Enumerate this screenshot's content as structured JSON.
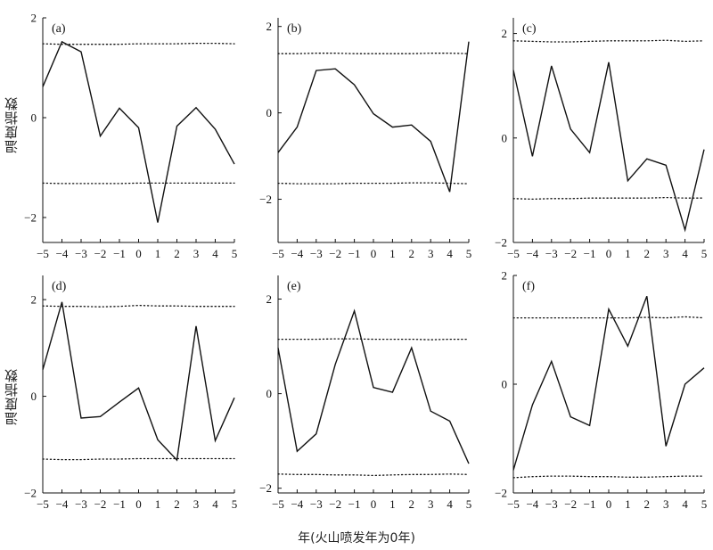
{
  "figure": {
    "ylabel": "温度指数",
    "xlabel": "年(火山喷发年为0年)"
  },
  "chart_data": [
    {
      "type": "line",
      "panel": "(a)",
      "x": [
        -5,
        -4,
        -3,
        -2,
        -1,
        0,
        1,
        2,
        3,
        4,
        5
      ],
      "x_ticks": [
        "-5",
        "-4",
        "-3",
        "-2",
        "-1",
        "0",
        "1",
        "2",
        "3",
        "4",
        "5"
      ],
      "y_ticks": [
        "2",
        "0",
        "-2"
      ],
      "ylim": [
        -2.5,
        2.0
      ],
      "series": [
        {
          "values": [
            0.62,
            1.52,
            1.32,
            -0.37,
            0.19,
            -0.2,
            -2.1,
            -0.17,
            0.2,
            -0.23,
            -0.93
          ]
        },
        {
          "style": "dotted",
          "values": [
            1.48,
            1.47,
            1.47,
            1.47,
            1.47,
            1.48,
            1.48,
            1.48,
            1.49,
            1.49,
            1.48
          ]
        },
        {
          "style": "dotted",
          "values": [
            -1.31,
            -1.32,
            -1.32,
            -1.32,
            -1.32,
            -1.31,
            -1.31,
            -1.31,
            -1.31,
            -1.31,
            -1.31
          ]
        }
      ]
    },
    {
      "type": "line",
      "panel": "(b)",
      "x": [
        -5,
        -4,
        -3,
        -2,
        -1,
        0,
        1,
        2,
        3,
        4,
        5
      ],
      "x_ticks": [
        "-5",
        "-4",
        "-3",
        "-2",
        "-1",
        "0",
        "1",
        "2",
        "3",
        "4",
        "5"
      ],
      "y_ticks": [
        "2",
        "0",
        "-2"
      ],
      "ylim": [
        -3.0,
        2.2
      ],
      "series": [
        {
          "values": [
            -0.92,
            -0.33,
            0.98,
            1.02,
            0.65,
            -0.02,
            -0.33,
            -0.28,
            -0.66,
            -1.83,
            1.65
          ]
        },
        {
          "style": "dotted",
          "values": [
            1.37,
            1.37,
            1.38,
            1.38,
            1.37,
            1.37,
            1.37,
            1.37,
            1.38,
            1.38,
            1.37
          ]
        },
        {
          "style": "dotted",
          "values": [
            -1.63,
            -1.64,
            -1.64,
            -1.64,
            -1.63,
            -1.63,
            -1.63,
            -1.62,
            -1.62,
            -1.63,
            -1.64
          ]
        }
      ]
    },
    {
      "type": "line",
      "panel": "(c)",
      "x": [
        -5,
        -4,
        -3,
        -2,
        -1,
        0,
        1,
        2,
        3,
        4,
        5
      ],
      "x_ticks": [
        "-5",
        "-4",
        "-3",
        "-2",
        "-1",
        "0",
        "1",
        "2",
        "3",
        "4",
        "5"
      ],
      "y_ticks": [
        "2",
        "0",
        "-2"
      ],
      "ylim": [
        -2.0,
        2.3
      ],
      "series": [
        {
          "values": [
            1.3,
            -0.35,
            1.38,
            0.17,
            -0.28,
            1.45,
            -0.82,
            -0.4,
            -0.52,
            -1.76,
            -0.22
          ]
        },
        {
          "style": "dotted",
          "values": [
            1.86,
            1.85,
            1.84,
            1.84,
            1.85,
            1.86,
            1.86,
            1.86,
            1.87,
            1.85,
            1.86
          ]
        },
        {
          "style": "dotted",
          "values": [
            -1.16,
            -1.17,
            -1.16,
            -1.16,
            -1.15,
            -1.15,
            -1.15,
            -1.15,
            -1.14,
            -1.15,
            -1.15
          ]
        }
      ]
    },
    {
      "type": "line",
      "panel": "(d)",
      "x": [
        -5,
        -4,
        -3,
        -2,
        -1,
        0,
        1,
        2,
        3,
        4,
        5
      ],
      "x_ticks": [
        "-5",
        "-4",
        "-3",
        "-2",
        "-1",
        "0",
        "1",
        "2",
        "3",
        "4",
        "5"
      ],
      "y_ticks": [
        "2",
        "0",
        "-2"
      ],
      "ylim": [
        -2.0,
        2.5
      ],
      "series": [
        {
          "values": [
            0.55,
            1.95,
            -0.45,
            -0.42,
            -0.12,
            0.17,
            -0.9,
            -1.32,
            1.45,
            -0.92,
            -0.03
          ]
        },
        {
          "style": "dotted",
          "values": [
            1.87,
            1.86,
            1.86,
            1.85,
            1.86,
            1.88,
            1.87,
            1.87,
            1.86,
            1.86,
            1.86
          ]
        },
        {
          "style": "dotted",
          "values": [
            -1.3,
            -1.31,
            -1.31,
            -1.3,
            -1.3,
            -1.29,
            -1.29,
            -1.29,
            -1.29,
            -1.29,
            -1.29
          ]
        }
      ]
    },
    {
      "type": "line",
      "panel": "(e)",
      "x": [
        -5,
        -4,
        -3,
        -2,
        -1,
        0,
        1,
        2,
        3,
        4,
        5
      ],
      "x_ticks": [
        "-5",
        "-4",
        "-3",
        "-2",
        "-1",
        "0",
        "1",
        "2",
        "3",
        "4",
        "5"
      ],
      "y_ticks": [
        "2",
        "0",
        "-2"
      ],
      "ylim": [
        -2.1,
        2.5
      ],
      "series": [
        {
          "values": [
            0.97,
            -1.22,
            -0.85,
            0.62,
            1.75,
            0.13,
            0.03,
            0.97,
            -0.37,
            -0.58,
            -1.48
          ]
        },
        {
          "style": "dotted",
          "values": [
            1.15,
            1.15,
            1.15,
            1.16,
            1.16,
            1.15,
            1.15,
            1.15,
            1.14,
            1.15,
            1.15
          ]
        },
        {
          "style": "dotted",
          "values": [
            -1.7,
            -1.71,
            -1.71,
            -1.72,
            -1.72,
            -1.73,
            -1.72,
            -1.71,
            -1.71,
            -1.7,
            -1.71
          ]
        }
      ]
    },
    {
      "type": "line",
      "panel": "(f)",
      "x": [
        -5,
        -4,
        -3,
        -2,
        -1,
        0,
        1,
        2,
        3,
        4,
        5
      ],
      "x_ticks": [
        "-5",
        "-4",
        "-3",
        "-2",
        "-1",
        "0",
        "1",
        "2",
        "3",
        "4",
        "5"
      ],
      "y_ticks": [
        "2",
        "0",
        "-2"
      ],
      "ylim": [
        -2.0,
        2.0
      ],
      "series": [
        {
          "values": [
            -1.58,
            -0.38,
            0.42,
            -0.6,
            -0.76,
            1.38,
            0.7,
            1.62,
            -1.14,
            0.0,
            0.3
          ]
        },
        {
          "style": "dotted",
          "values": [
            1.22,
            1.22,
            1.22,
            1.22,
            1.22,
            1.22,
            1.22,
            1.23,
            1.22,
            1.24,
            1.22
          ]
        },
        {
          "style": "dotted",
          "values": [
            -1.72,
            -1.7,
            -1.69,
            -1.69,
            -1.7,
            -1.7,
            -1.71,
            -1.71,
            -1.7,
            -1.69,
            -1.69
          ]
        }
      ]
    }
  ]
}
